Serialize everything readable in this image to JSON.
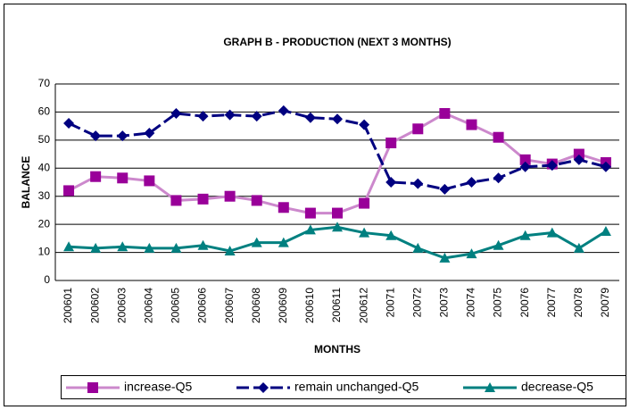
{
  "chart_data": {
    "type": "line",
    "title": "GRAPH B - PRODUCTION (NEXT 3 MONTHS)",
    "x_label": "MONTHS",
    "y_label": "BALANCE",
    "categories": [
      "200601",
      "200602",
      "200603",
      "200604",
      "200605",
      "200606",
      "200607",
      "200608",
      "200609",
      "200610",
      "200611",
      "200612",
      "20071",
      "20072",
      "20073",
      "20074",
      "20075",
      "20076",
      "20077",
      "20078",
      "20079"
    ],
    "series": [
      {
        "name": "increase-Q5",
        "color": "#cc88cc",
        "marker": "square",
        "marker_color": "#990099",
        "values": [
          32,
          37,
          36.5,
          35.5,
          28.5,
          29,
          30,
          28.5,
          26,
          24,
          24,
          27.5,
          49,
          54,
          59.5,
          55.5,
          51,
          43,
          41.5,
          45,
          42
        ]
      },
      {
        "name": "remain unchanged-Q5",
        "color": "#000080",
        "marker": "diamond",
        "marker_color": "#000080",
        "dashed": true,
        "values": [
          56,
          51.5,
          51.5,
          52.5,
          59.5,
          58.5,
          59,
          58.5,
          60.5,
          58,
          57.5,
          55.5,
          35,
          34.5,
          32.5,
          35,
          36.5,
          40.5,
          41,
          43,
          40.5
        ]
      },
      {
        "name": "decrease-Q5",
        "color": "#008080",
        "marker": "triangle",
        "marker_color": "#008080",
        "values": [
          12,
          11.5,
          12,
          11.5,
          11.5,
          12.5,
          10.5,
          13.5,
          13.5,
          18,
          19,
          17,
          16,
          11.5,
          8,
          9.5,
          12.5,
          16,
          17,
          11.5,
          17.5
        ]
      }
    ],
    "ylim": [
      0,
      70
    ],
    "yticks": [
      0,
      10,
      20,
      30,
      40,
      50,
      60,
      70
    ],
    "grid": true,
    "legend": "bottom"
  }
}
